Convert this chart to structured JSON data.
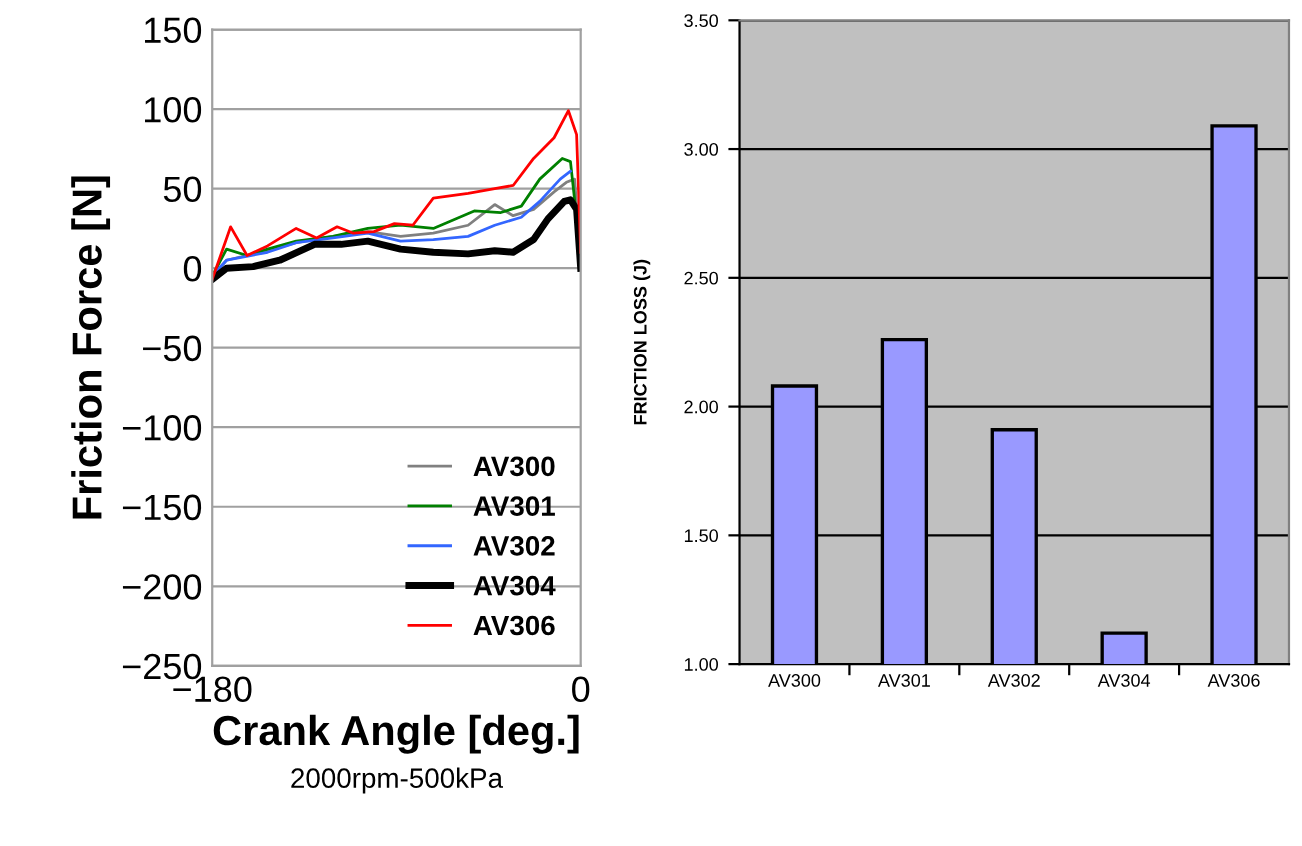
{
  "chart_data": [
    {
      "type": "line",
      "xlabel": "Crank Angle [deg.]",
      "ylabel": "Friction Force [N]",
      "annotations": [
        "2000rpm-500kPa"
      ],
      "xlim": [
        -180,
        0
      ],
      "xticks": [
        {
          "value": -180,
          "label": "−180"
        },
        0
      ],
      "ylim": [
        -250,
        150
      ],
      "yticks": [
        {
          "value": -250,
          "label": "−250"
        },
        {
          "value": -200,
          "label": "−200"
        },
        {
          "value": -150,
          "label": "−150"
        },
        {
          "value": -100,
          "label": "−100"
        },
        {
          "value": -50,
          "label": "−50"
        },
        0,
        50,
        100,
        150
      ],
      "grid": "y",
      "legend": "bottom right",
      "series": [
        {
          "name": "AV300",
          "color": "#808080",
          "x": [
            -180,
            -173,
            -153,
            -139,
            -121,
            -104,
            -88,
            -72,
            -55,
            -42,
            -33,
            -23,
            -13,
            -7,
            -3,
            0
          ],
          "values": [
            -5,
            5,
            11,
            16,
            20,
            23,
            20,
            22,
            27,
            40,
            33,
            37,
            48,
            54,
            56,
            8
          ]
        },
        {
          "name": "AV301",
          "color": "#008000",
          "x": [
            -180,
            -173,
            -163,
            -153,
            -139,
            -121,
            -104,
            -88,
            -72,
            -52,
            -39,
            -29,
            -20,
            -9,
            -5,
            0
          ],
          "values": [
            -5,
            12,
            8,
            12,
            17,
            20,
            25,
            27,
            25,
            36,
            35,
            39,
            56,
            69,
            67,
            8
          ]
        },
        {
          "name": "AV302",
          "color": "#3366ff",
          "x": [
            -180,
            -173,
            -153,
            -139,
            -121,
            -104,
            -88,
            -72,
            -55,
            -42,
            -29,
            -20,
            -10,
            -5
          ],
          "values": [
            -5,
            5,
            10,
            16,
            19,
            22,
            17,
            18,
            20,
            27,
            32,
            42,
            56,
            61
          ]
        },
        {
          "name": "AV304",
          "color": "#000000",
          "x": [
            -180,
            -173,
            -160,
            -147,
            -130,
            -117,
            -104,
            -88,
            -72,
            -55,
            -42,
            -33,
            -23,
            -16,
            -8,
            -5,
            -2,
            0
          ],
          "values": [
            -7,
            0,
            1,
            5,
            15,
            15,
            17,
            12,
            10,
            9,
            11,
            10,
            18,
            31,
            42,
            43,
            37,
            0
          ]
        },
        {
          "name": "AV306",
          "color": "#ff0000",
          "x": [
            -180,
            -171,
            -163,
            -153,
            -139,
            -129,
            -119,
            -111,
            -101,
            -91,
            -82,
            -72,
            -55,
            -42,
            -33,
            -23,
            -13,
            -6,
            -2,
            0
          ],
          "values": [
            -7,
            26,
            8,
            14,
            25,
            19,
            26,
            22,
            23,
            28,
            27,
            44,
            47,
            50,
            52,
            69,
            82,
            99,
            84,
            10
          ]
        }
      ]
    },
    {
      "type": "bar",
      "ylabel": "FRICTION LOSS (J)",
      "categories": [
        "AV300",
        "AV301",
        "AV302",
        "AV304",
        "AV306"
      ],
      "values": [
        2.08,
        2.26,
        1.91,
        1.12,
        3.09
      ],
      "color": "#9999ff",
      "ylim": [
        1.0,
        3.5
      ],
      "yticks": [
        {
          "value": 1.0,
          "label": "1.00"
        },
        {
          "value": 1.5,
          "label": "1.50"
        },
        {
          "value": 2.0,
          "label": "2.00"
        },
        {
          "value": 2.5,
          "label": "2.50"
        },
        {
          "value": 3.0,
          "label": "3.00"
        },
        {
          "value": 3.5,
          "label": "3.50"
        }
      ],
      "grid": "y"
    }
  ]
}
